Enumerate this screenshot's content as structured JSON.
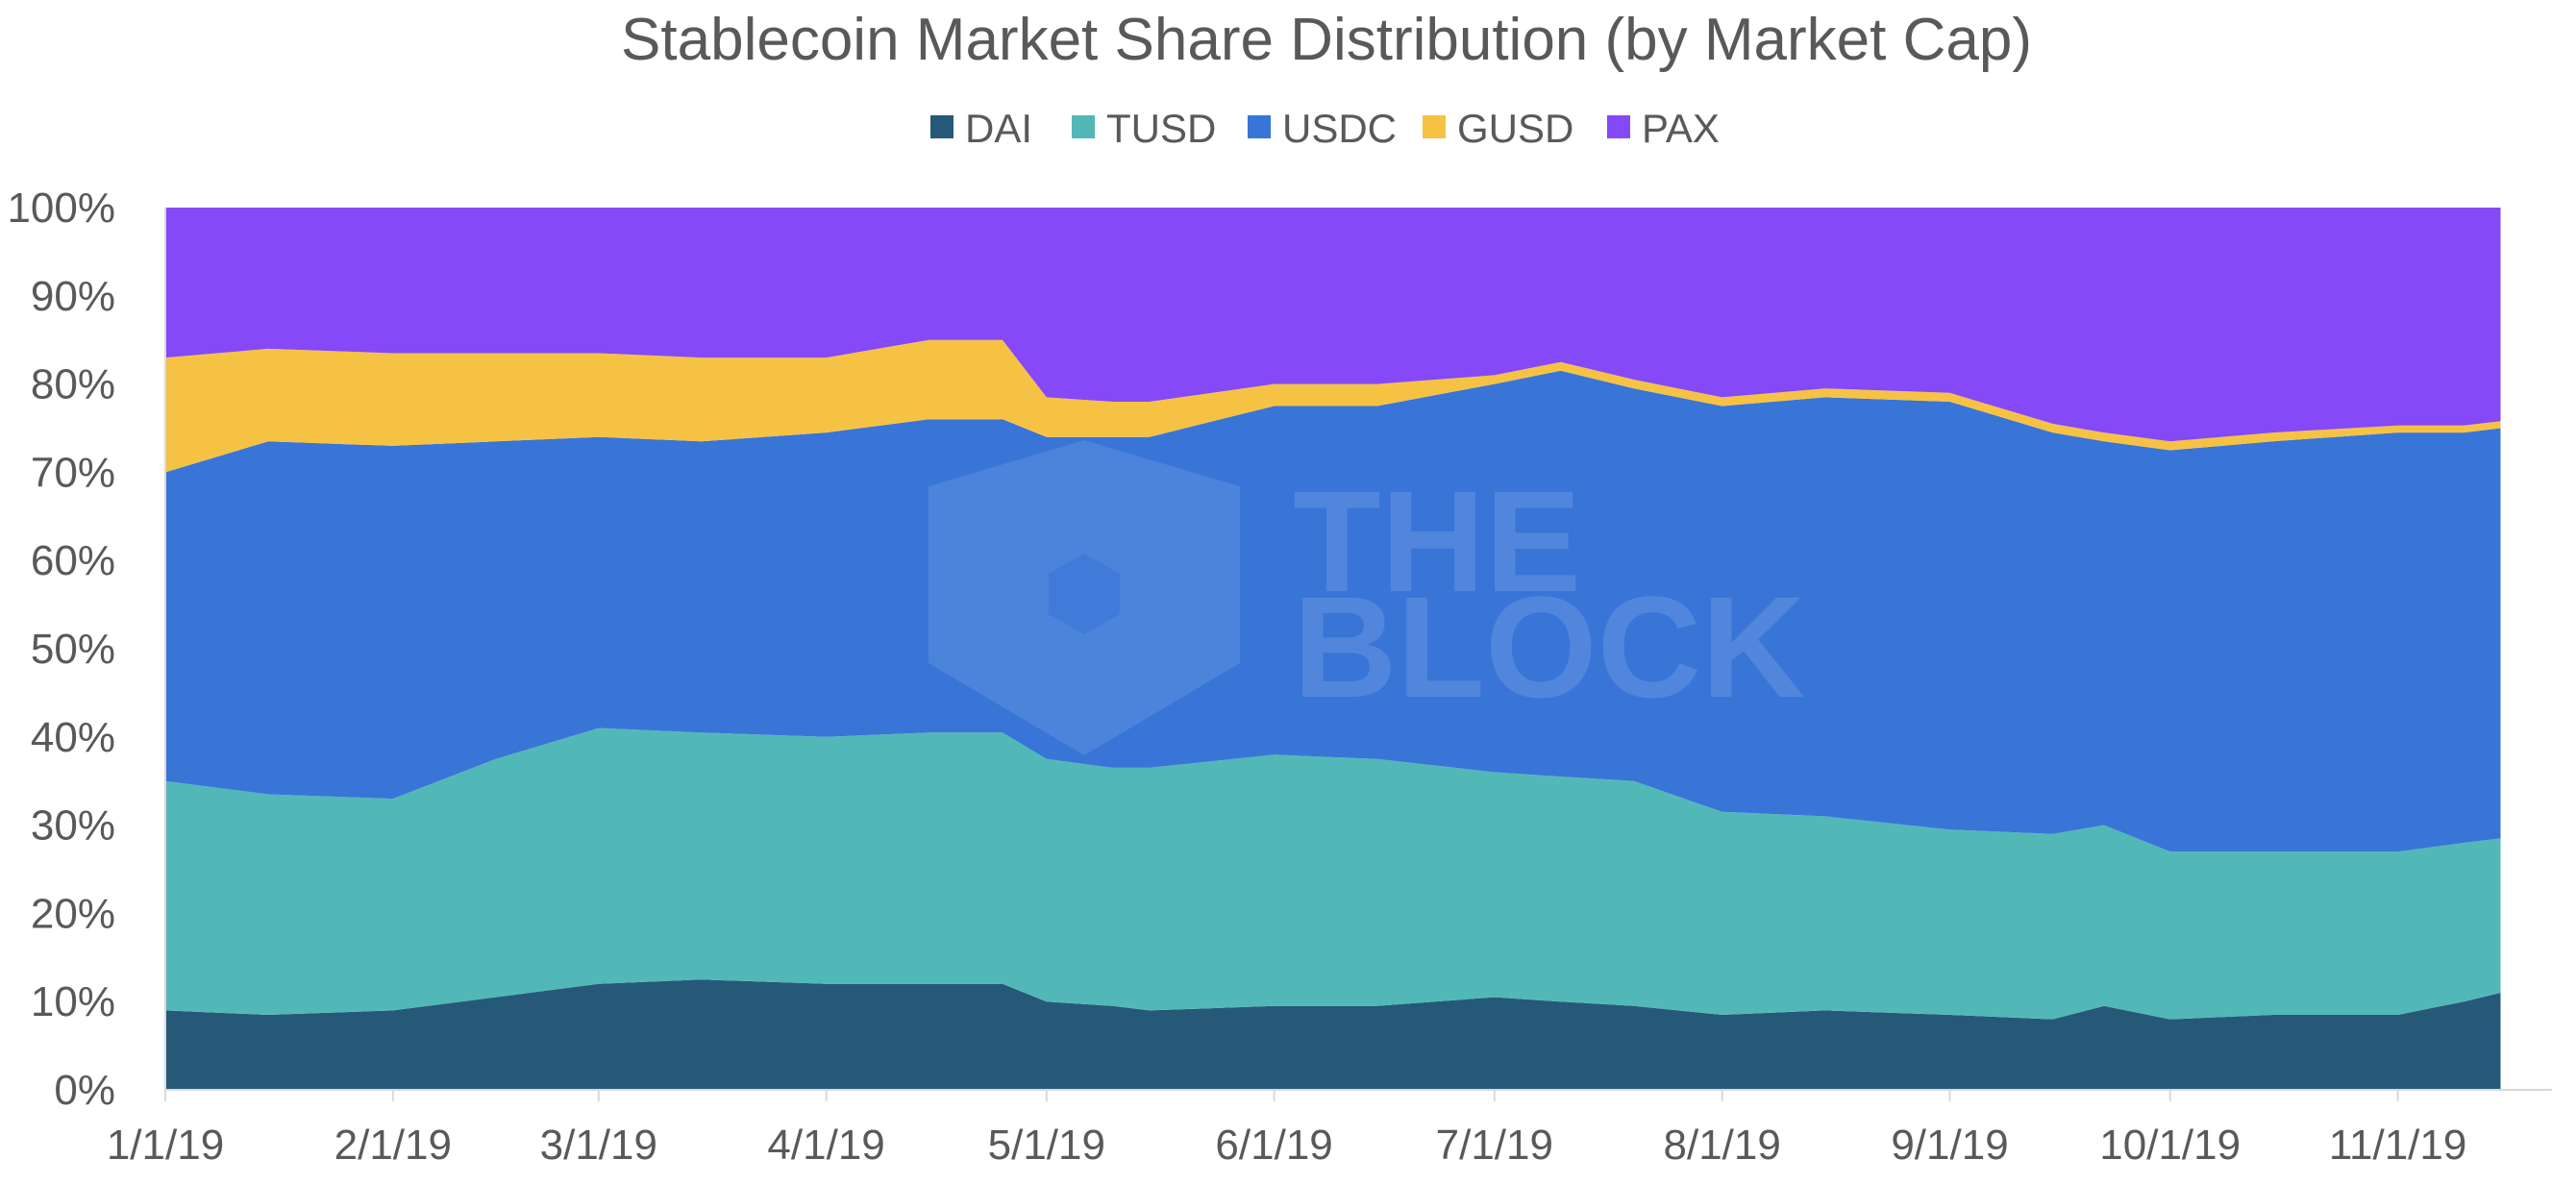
{
  "chart_data": {
    "type": "area",
    "stacked": "percent",
    "title": "Stablecoin Market Share Distribution (by Market Cap)",
    "xlabel": "",
    "ylabel": "",
    "ylim": [
      0,
      100
    ],
    "y_ticks": [
      "0%",
      "10%",
      "20%",
      "30%",
      "40%",
      "50%",
      "60%",
      "70%",
      "80%",
      "90%",
      "100%"
    ],
    "x_ticks": [
      "1/1/19",
      "2/1/19",
      "3/1/19",
      "4/1/19",
      "5/1/19",
      "6/1/19",
      "7/1/19",
      "8/1/19",
      "9/1/19",
      "10/1/19",
      "11/1/19"
    ],
    "legend_position": "top",
    "grid": false,
    "watermark": "THE BLOCK",
    "x": [
      "2019-01-01",
      "2019-01-15",
      "2019-02-01",
      "2019-02-15",
      "2019-03-01",
      "2019-03-15",
      "2019-04-01",
      "2019-04-15",
      "2019-04-25",
      "2019-05-01",
      "2019-05-10",
      "2019-05-15",
      "2019-06-01",
      "2019-06-15",
      "2019-07-01",
      "2019-07-10",
      "2019-07-20",
      "2019-08-01",
      "2019-08-15",
      "2019-09-01",
      "2019-09-15",
      "2019-09-22",
      "2019-10-01",
      "2019-10-15",
      "2019-11-01",
      "2019-11-10",
      "2019-11-15"
    ],
    "series": [
      {
        "name": "DAI",
        "color": "#265978",
        "values": [
          9,
          8.5,
          9,
          10.5,
          12,
          12.5,
          12,
          12,
          12,
          10,
          9.5,
          9,
          9.5,
          9.5,
          10.5,
          10,
          9.5,
          8.5,
          9,
          8.5,
          8,
          9.5,
          8,
          8.5,
          8.5,
          10,
          11
        ]
      },
      {
        "name": "TUSD",
        "color": "#52b8b7",
        "values": [
          26,
          25,
          24,
          27,
          29,
          28,
          28,
          28.5,
          28.5,
          27.5,
          27,
          27.5,
          28.5,
          28,
          25.5,
          25.5,
          25.5,
          23,
          22,
          21,
          21,
          20.5,
          19,
          18.5,
          18.5,
          18,
          17.5
        ]
      },
      {
        "name": "USDC",
        "color": "#3875d7",
        "values": [
          35,
          40,
          40,
          36,
          33,
          33,
          34.5,
          35.5,
          35.5,
          36.5,
          37.5,
          37.5,
          39.5,
          40,
          44,
          46,
          44.5,
          46,
          47.5,
          48.5,
          45.5,
          43.5,
          45.5,
          46.5,
          47.5,
          46.5,
          46.5
        ]
      },
      {
        "name": "GUSD",
        "color": "#f6c244",
        "values": [
          13,
          10.5,
          10.5,
          10,
          9.5,
          9.5,
          8.5,
          9,
          9,
          4.5,
          4,
          4,
          2.5,
          2.5,
          1,
          1,
          1,
          1,
          1,
          1,
          1,
          1,
          1,
          1,
          0.8,
          0.8,
          0.8
        ]
      },
      {
        "name": "PAX",
        "color": "#8549f7",
        "values": [
          17,
          16,
          16.5,
          16.5,
          16.5,
          17,
          17,
          15,
          15,
          21.5,
          22,
          22,
          20,
          20,
          19,
          17.5,
          19.5,
          21.5,
          20.5,
          21,
          24.5,
          25.5,
          26.5,
          25.5,
          24.7,
          24.7,
          24.2
        ]
      }
    ]
  }
}
